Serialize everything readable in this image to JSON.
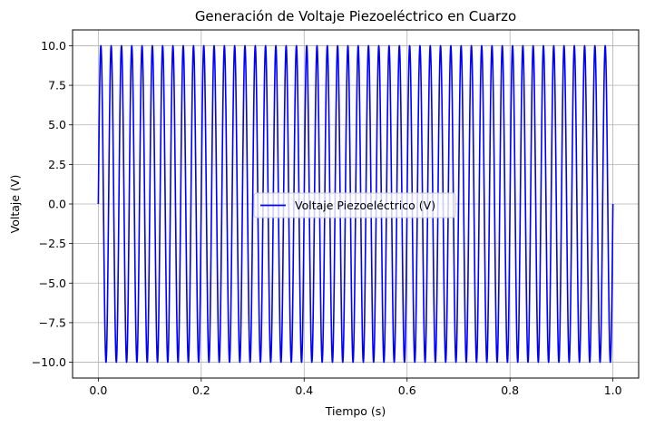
{
  "chart_data": {
    "type": "line",
    "title": "Generación de Voltaje Piezoeléctrico en Cuarzo",
    "xlabel": "Tiempo (s)",
    "ylabel": "Voltaje (V)",
    "xlim": [
      -0.05,
      1.05
    ],
    "ylim": [
      -11,
      11
    ],
    "xticks": [
      0.0,
      0.2,
      0.4,
      0.6,
      0.8,
      1.0
    ],
    "xtick_labels": [
      "0.0",
      "0.2",
      "0.4",
      "0.6",
      "0.8",
      "1.0"
    ],
    "yticks": [
      -10.0,
      -7.5,
      -5.0,
      -2.5,
      0.0,
      2.5,
      5.0,
      7.5,
      10.0
    ],
    "ytick_labels": [
      "−10.0",
      "−7.5",
      "−5.0",
      "−2.5",
      "0.0",
      "2.5",
      "5.0",
      "7.5",
      "10.0"
    ],
    "grid": true,
    "legend_position": "center",
    "series": [
      {
        "name": "Voltaje Piezoeléctrico (V)",
        "color": "#0000ff",
        "function": "sine",
        "amplitude": 10,
        "frequency_hz": 50,
        "x_start": 0,
        "x_end": 1
      }
    ]
  }
}
